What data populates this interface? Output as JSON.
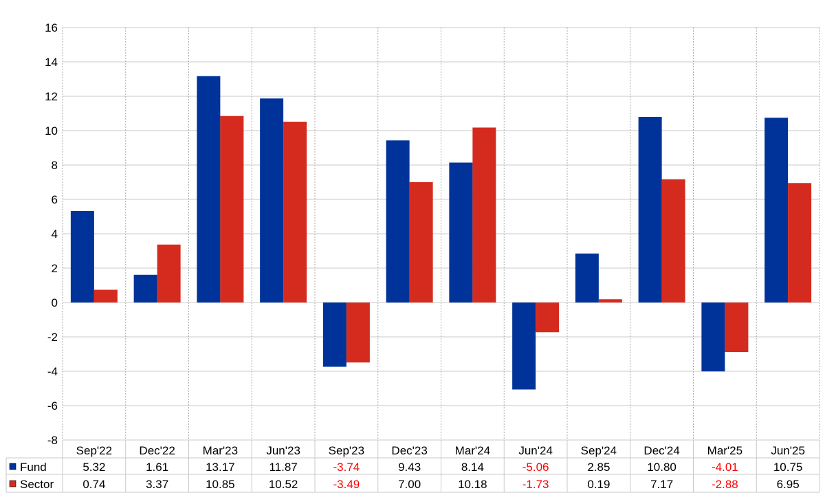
{
  "chart_data": {
    "type": "bar",
    "categories": [
      "Sep'22",
      "Dec'22",
      "Mar'23",
      "Jun'23",
      "Sep'23",
      "Dec'23",
      "Mar'24",
      "Jun'24",
      "Sep'24",
      "Dec'24",
      "Mar'25",
      "Jun'25"
    ],
    "series": [
      {
        "name": "Fund",
        "color": "#003399",
        "values": [
          5.32,
          1.61,
          13.17,
          11.87,
          -3.74,
          9.43,
          8.14,
          -5.06,
          2.85,
          10.8,
          -4.01,
          10.75
        ]
      },
      {
        "name": "Sector",
        "color": "#d52b1e",
        "values": [
          0.74,
          3.37,
          10.85,
          10.52,
          -3.49,
          7.0,
          10.18,
          -1.73,
          0.19,
          7.17,
          -2.88,
          6.95
        ]
      }
    ],
    "ylim": [
      -8,
      16
    ],
    "yticks": [
      -8,
      -6,
      -4,
      -2,
      0,
      2,
      4,
      6,
      8,
      10,
      12,
      14,
      16
    ],
    "grid": true,
    "legend": "data-table",
    "negative_color": "#ff0000"
  }
}
